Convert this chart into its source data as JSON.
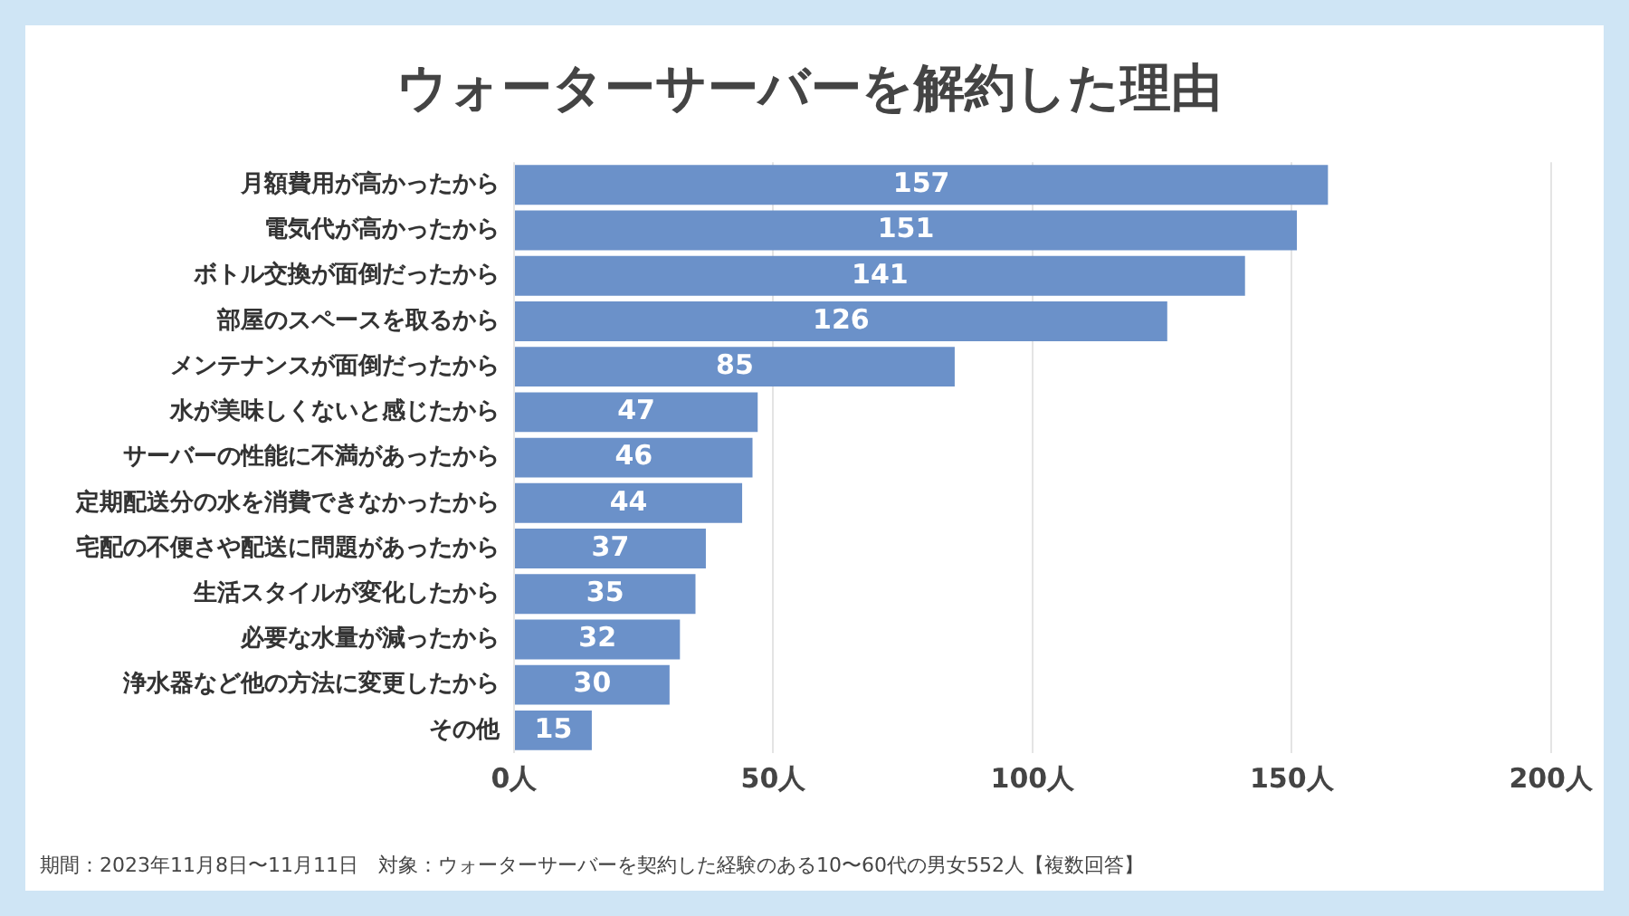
{
  "chart_data": {
    "type": "bar",
    "orientation": "horizontal",
    "title": "ウォーターサーバーを解約した理由",
    "categories": [
      "月額費用が高かったから",
      "電気代が高かったから",
      "ボトル交換が面倒だったから",
      "部屋のスペースを取るから",
      "メンテナンスが面倒だったから",
      "水が美味しくないと感じたから",
      "サーバーの性能に不満があったから",
      "定期配送分の水を消費できなかったから",
      "宅配の不便さや配送に問題があったから",
      "生活スタイルが変化したから",
      "必要な水量が減ったから",
      "浄水器など他の方法に変更したから",
      "その他"
    ],
    "values": [
      157,
      151,
      141,
      126,
      85,
      47,
      46,
      44,
      37,
      35,
      32,
      30,
      15
    ],
    "color": "#6b91c9",
    "xlim": [
      0,
      200
    ],
    "xticks": [
      {
        "value": 0,
        "label": "0人"
      },
      {
        "value": 50,
        "label": "50人"
      },
      {
        "value": 100,
        "label": "100人"
      },
      {
        "value": 150,
        "label": "150人"
      },
      {
        "value": 200,
        "label": "200人"
      }
    ],
    "grid": "x",
    "legend": false,
    "data_labels": true,
    "annotations": [
      "期間：2023年11月8日〜11月11日　対象：ウォーターサーバーを契約した経験のある10〜60代の男女552人【複数回答】"
    ]
  }
}
